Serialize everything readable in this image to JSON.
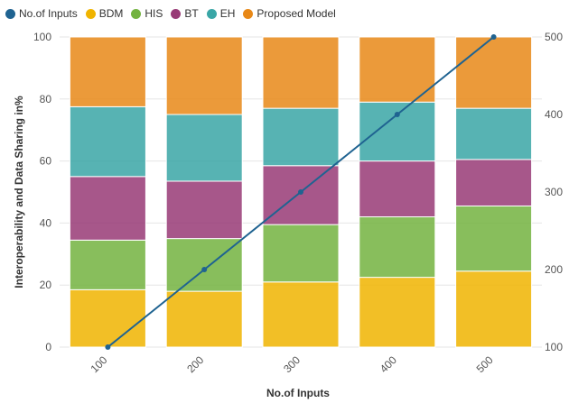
{
  "legend": [
    {
      "label": "No.of Inputs",
      "color": "#1f6391"
    },
    {
      "label": "BDM",
      "color": "#f0b400"
    },
    {
      "label": "HIS",
      "color": "#73b340"
    },
    {
      "label": "BT",
      "color": "#983a76"
    },
    {
      "label": "EH",
      "color": "#3aa6a6"
    },
    {
      "label": "Proposed Model",
      "color": "#e88817"
    }
  ],
  "chart_data": {
    "type": "bar",
    "stacked": true,
    "categories": [
      "100",
      "200",
      "300",
      "400",
      "500"
    ],
    "xlabel": "No.of Inputs",
    "ylabel": "Interoperability and Data Sharing in%",
    "ylim": [
      0,
      100
    ],
    "y_ticks": [
      "0",
      "20",
      "40",
      "60",
      "80",
      "100"
    ],
    "y2lim": [
      100,
      500
    ],
    "y2_ticks": [
      "100",
      "200",
      "300",
      "400",
      "500"
    ],
    "legend_position": "top-left",
    "series": [
      {
        "name": "BDM",
        "color": "#f0b400",
        "values": [
          18.5,
          18.0,
          21.0,
          22.5,
          24.5
        ]
      },
      {
        "name": "HIS",
        "color": "#73b340",
        "values": [
          16.0,
          17.0,
          18.5,
          19.5,
          21.0
        ]
      },
      {
        "name": "BT",
        "color": "#983a76",
        "values": [
          20.5,
          18.5,
          19.0,
          18.0,
          15.0
        ]
      },
      {
        "name": "EH",
        "color": "#3aa6a6",
        "values": [
          22.5,
          21.5,
          18.5,
          19.0,
          16.5
        ]
      },
      {
        "name": "Proposed Model",
        "color": "#e88817",
        "values": [
          22.5,
          25.0,
          23.0,
          21.0,
          23.0
        ]
      }
    ],
    "line": {
      "name": "No.of Inputs",
      "axis": "right",
      "color": "#1f6391",
      "values": [
        100,
        200,
        300,
        400,
        500
      ]
    }
  }
}
